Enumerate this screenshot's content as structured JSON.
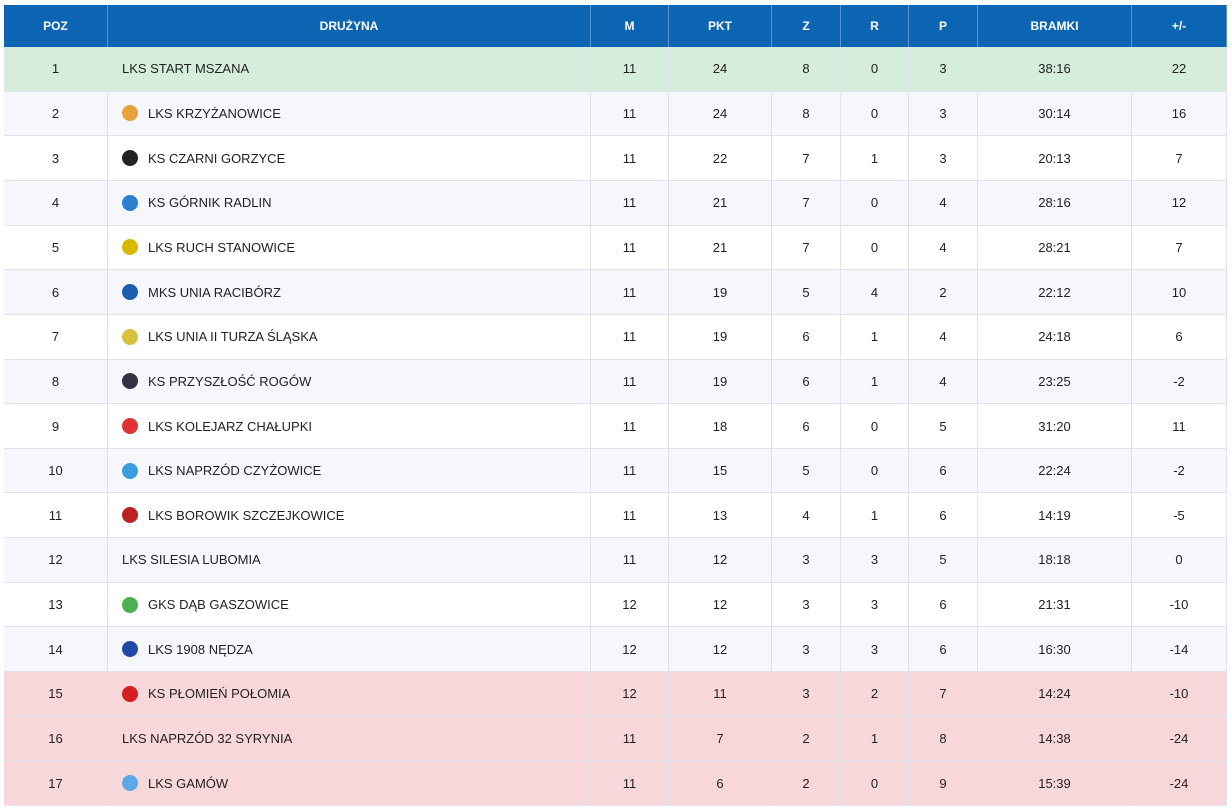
{
  "table": {
    "headers": [
      "POZ",
      "DRUŻYNA",
      "M",
      "PKT",
      "Z",
      "R",
      "P",
      "BRAMKI",
      "+/-"
    ],
    "rows": [
      [
        1,
        "LKS START MSZANA",
        11,
        24,
        8,
        0,
        3,
        "38:16",
        22
      ],
      [
        2,
        "LKS KRZYŻANOWICE",
        11,
        24,
        8,
        0,
        3,
        "30:14",
        16
      ],
      [
        3,
        "KS CZARNI GORZYCE",
        11,
        22,
        7,
        1,
        3,
        "20:13",
        7
      ],
      [
        4,
        "KS GÓRNIK RADLIN",
        11,
        21,
        7,
        0,
        4,
        "28:16",
        12
      ],
      [
        5,
        "LKS RUCH STANOWICE",
        11,
        21,
        7,
        0,
        4,
        "28:21",
        7
      ],
      [
        6,
        "MKS UNIA RACIBÓRZ",
        11,
        19,
        5,
        4,
        2,
        "22:12",
        10
      ],
      [
        7,
        "LKS UNIA II TURZA ŚLĄSKA",
        11,
        19,
        6,
        1,
        4,
        "24:18",
        6
      ],
      [
        8,
        "KS PRZYSZŁOŚĆ ROGÓW",
        11,
        19,
        6,
        1,
        4,
        "23:25",
        -2
      ],
      [
        9,
        "LKS KOLEJARZ CHAŁUPKI",
        11,
        18,
        6,
        0,
        5,
        "31:20",
        11
      ],
      [
        10,
        "LKS NAPRZÓD CZYŻOWICE",
        11,
        15,
        5,
        0,
        6,
        "22:24",
        -2
      ],
      [
        11,
        "LKS BOROWIK SZCZEJKOWICE",
        11,
        13,
        4,
        1,
        6,
        "14:19",
        -5
      ],
      [
        12,
        "LKS SILESIA LUBOMIA",
        11,
        12,
        3,
        3,
        5,
        "18:18",
        0
      ],
      [
        13,
        "GKS DĄB GASZOWICE",
        12,
        12,
        3,
        3,
        6,
        "21:31",
        -10
      ],
      [
        14,
        "LKS 1908 NĘDZA",
        12,
        12,
        3,
        3,
        6,
        "16:30",
        -14
      ],
      [
        15,
        "KS PŁOMIEŃ POŁOMIA",
        12,
        11,
        3,
        2,
        7,
        "14:24",
        -10
      ],
      [
        16,
        "LKS NAPRZÓD 32 SYRYNIA",
        11,
        7,
        2,
        1,
        8,
        "14:38",
        -24
      ],
      [
        17,
        "LKS GAMÓW",
        11,
        6,
        2,
        0,
        9,
        "15:39",
        -24
      ]
    ]
  }
}
